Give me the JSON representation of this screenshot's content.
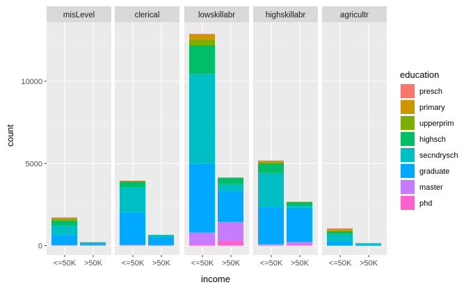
{
  "chart_data": {
    "type": "bar",
    "stacked": true,
    "faceted": true,
    "xlabel": "income",
    "ylabel": "count",
    "ylim": [
      0,
      13500
    ],
    "y_ticks": [
      0,
      5000,
      10000
    ],
    "y_tick_labels": [
      "0",
      "5000",
      "10000"
    ],
    "categories": [
      "<=50K",
      ">50K"
    ],
    "legend": {
      "title": "education",
      "position": "right",
      "entries": [
        "presch",
        "primary",
        "upperprim",
        "highsch",
        "secndrysch",
        "graduate",
        "master",
        "phd"
      ]
    },
    "colors": {
      "presch": "#F8766D",
      "primary": "#CD9600",
      "upperprim": "#7CAE00",
      "highsch": "#00BE67",
      "secndrysch": "#00BFC4",
      "graduate": "#00A9FF",
      "master": "#C77CFF",
      "phd": "#FF61CC"
    },
    "facets": [
      {
        "name": "misLevel",
        "bars": [
          {
            "category": "<=50K",
            "values": {
              "presch": 10,
              "primary": 70,
              "upperprim": 110,
              "highsch": 300,
              "secndrysch": 580,
              "graduate": 610,
              "master": 30,
              "phd": 10
            }
          },
          {
            "category": ">50K",
            "values": {
              "presch": 0,
              "primary": 0,
              "upperprim": 0,
              "highsch": 15,
              "secndrysch": 50,
              "graduate": 110,
              "master": 25,
              "phd": 10
            }
          }
        ]
      },
      {
        "name": "clerical",
        "bars": [
          {
            "category": "<=50K",
            "values": {
              "presch": 5,
              "primary": 15,
              "upperprim": 20,
              "highsch": 370,
              "secndrysch": 1520,
              "graduate": 1970,
              "master": 40,
              "phd": 10
            }
          },
          {
            "category": ">50K",
            "values": {
              "presch": 0,
              "primary": 0,
              "upperprim": 0,
              "highsch": 15,
              "secndrysch": 120,
              "graduate": 490,
              "master": 30,
              "phd": 5
            }
          }
        ]
      },
      {
        "name": "lowskillabr",
        "bars": [
          {
            "category": "<=50K",
            "values": {
              "presch": 40,
              "primary": 300,
              "upperprim": 350,
              "highsch": 1750,
              "secndrysch": 5450,
              "graduate": 4200,
              "master": 700,
              "phd": 100
            }
          },
          {
            "category": ">50K",
            "values": {
              "presch": 0,
              "primary": 10,
              "upperprim": 20,
              "highsch": 370,
              "secndrysch": 450,
              "graduate": 1850,
              "master": 1150,
              "phd": 300
            }
          }
        ]
      },
      {
        "name": "highskillabr",
        "bars": [
          {
            "category": "<=50K",
            "values": {
              "presch": 15,
              "primary": 90,
              "upperprim": 60,
              "highsch": 590,
              "secndrysch": 2050,
              "graduate": 2270,
              "master": 80,
              "phd": 25
            }
          },
          {
            "category": ">50K",
            "values": {
              "presch": 0,
              "primary": 0,
              "upperprim": 10,
              "highsch": 230,
              "secndrysch": 120,
              "graduate": 2090,
              "master": 160,
              "phd": 60
            }
          }
        ]
      },
      {
        "name": "agricultr",
        "bars": [
          {
            "category": "<=50K",
            "values": {
              "presch": 30,
              "primary": 90,
              "upperprim": 60,
              "highsch": 170,
              "secndrysch": 450,
              "graduate": 250,
              "master": 5,
              "phd": 0
            }
          },
          {
            "category": ">50K",
            "values": {
              "presch": 0,
              "primary": 0,
              "upperprim": 0,
              "highsch": 20,
              "secndrysch": 60,
              "graduate": 70,
              "master": 5,
              "phd": 0
            }
          }
        ]
      }
    ]
  }
}
